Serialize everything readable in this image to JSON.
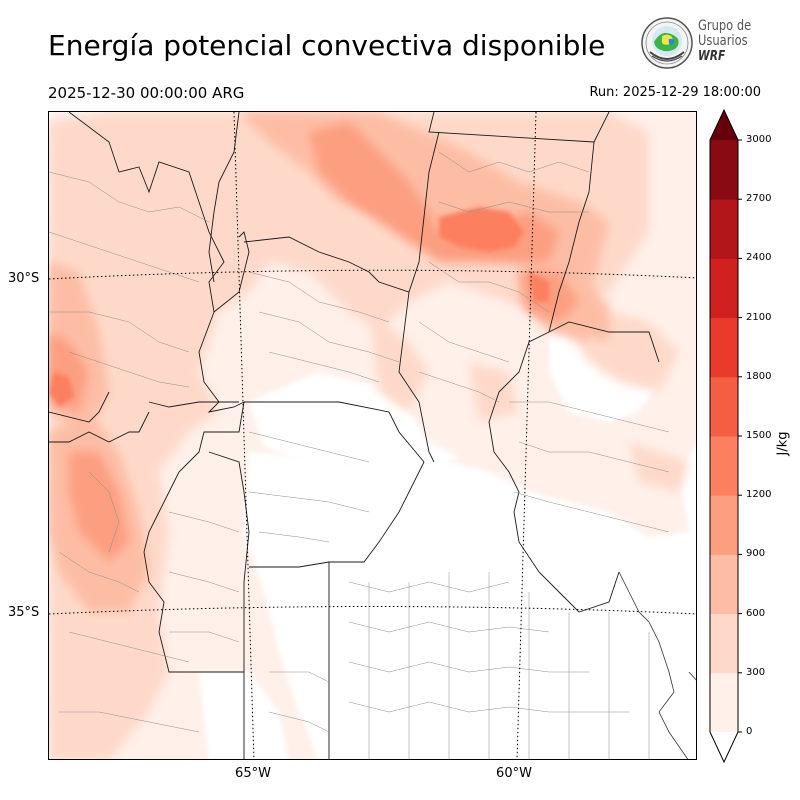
{
  "header": {
    "title": "Energía potencial convectiva disponible",
    "valid_time": "2025-12-30 00:00:00 ARG",
    "run_time": "Run: 2025-12-29 18:00:00"
  },
  "logo": {
    "line1": "Grupo de",
    "line2": "Usuarios",
    "line3": "WRF"
  },
  "map": {
    "latitude_labels": [
      "30°S",
      "35°S"
    ],
    "longitude_labels": [
      "65°W",
      "60°W"
    ],
    "field": "CAPE"
  },
  "colorbar": {
    "unit": "J/kg",
    "ticks": [
      "0",
      "300",
      "600",
      "900",
      "1200",
      "1500",
      "1800",
      "2100",
      "2400",
      "2700",
      "3000"
    ],
    "colors": [
      "#fff0ea",
      "#fed9c9",
      "#fdbda5",
      "#fc9e80",
      "#fc7f5f",
      "#f65e43",
      "#e93a2c",
      "#d0201f",
      "#b2151a",
      "#8a0a13"
    ],
    "extend_max_color": "#67000d",
    "extend_min_color": "#ffffff"
  }
}
